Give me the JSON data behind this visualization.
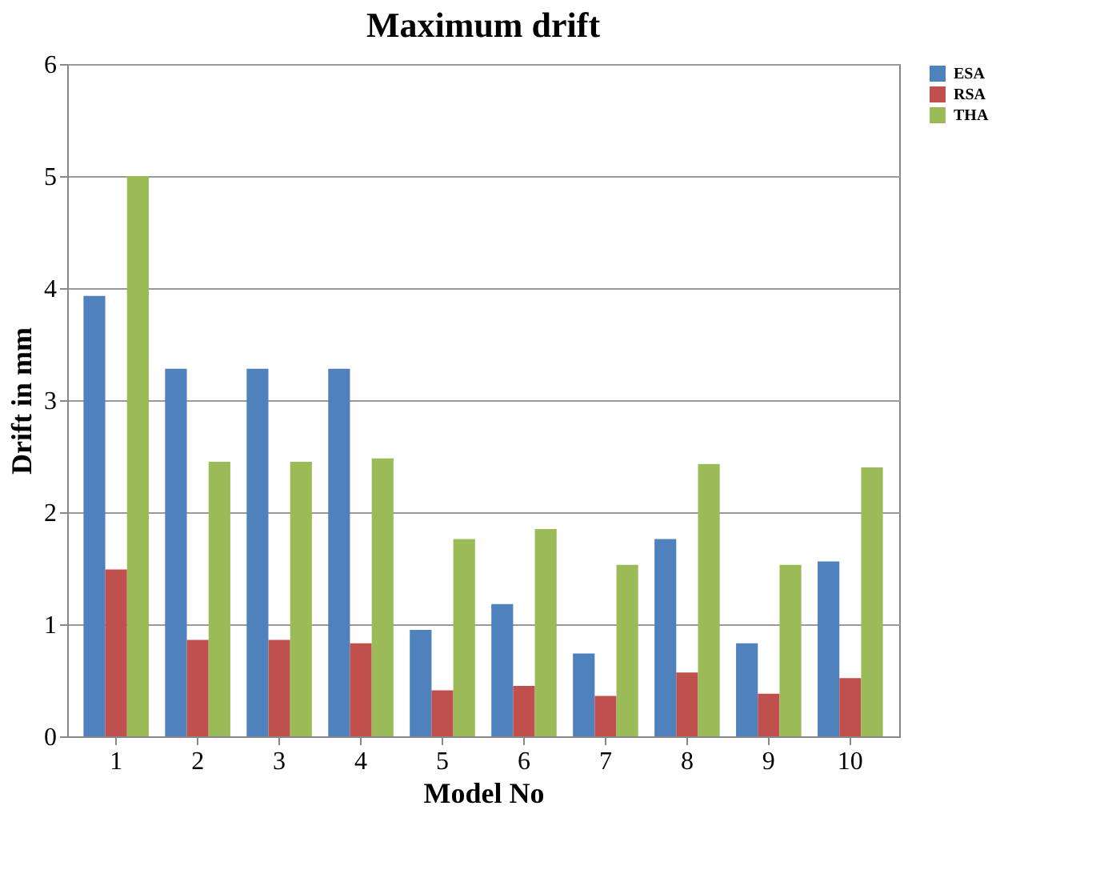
{
  "chart_data": {
    "type": "bar",
    "title": "Maximum drift",
    "xlabel": "Model No",
    "ylabel": "Drift in mm",
    "categories": [
      "1",
      "2",
      "3",
      "4",
      "5",
      "6",
      "7",
      "8",
      "9",
      "10"
    ],
    "series": [
      {
        "name": "ESA",
        "color": "#4f81bd",
        "values": [
          3.93,
          3.28,
          3.28,
          3.28,
          0.95,
          1.18,
          0.74,
          1.76,
          0.83,
          1.56
        ]
      },
      {
        "name": "RSA",
        "color": "#c0504d",
        "values": [
          1.49,
          0.86,
          0.86,
          0.83,
          0.41,
          0.45,
          0.36,
          0.57,
          0.38,
          0.52
        ]
      },
      {
        "name": "THA",
        "color": "#9bbb59",
        "values": [
          5.0,
          2.45,
          2.45,
          2.48,
          1.76,
          1.85,
          1.53,
          2.43,
          1.53,
          2.4
        ]
      }
    ],
    "ylim": [
      0,
      6
    ],
    "yticks": [
      0,
      1,
      2,
      3,
      4,
      5,
      6
    ],
    "grid": "y",
    "legend": "right"
  }
}
